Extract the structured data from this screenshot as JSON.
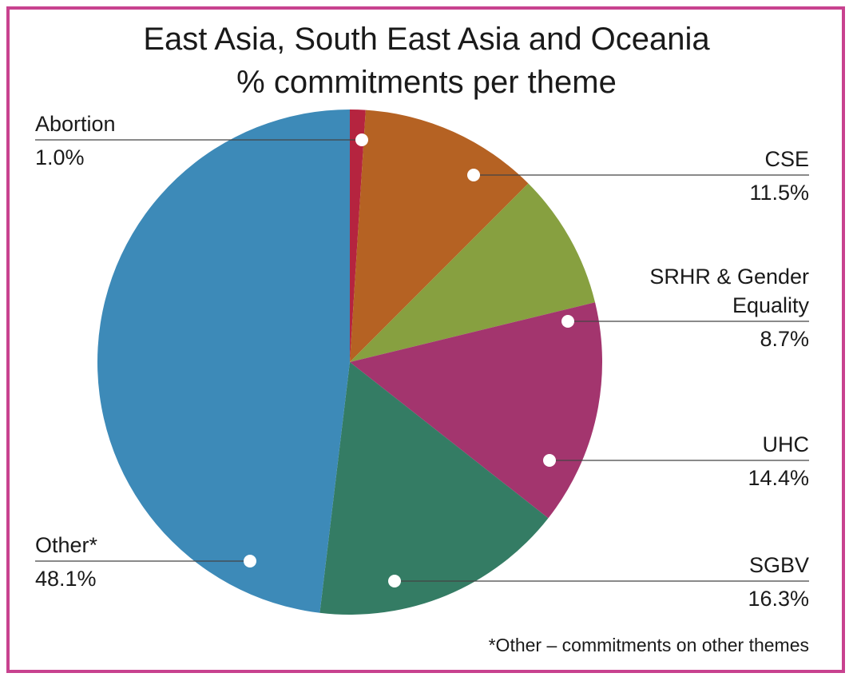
{
  "chart_data": {
    "type": "pie",
    "title": "East Asia, South East Asia and Oceania",
    "subtitle": "% commitments per theme",
    "categories": [
      "Abortion",
      "CSE",
      "SRHR & Gender Equality",
      "UHC",
      "SGBV",
      "Other*"
    ],
    "values": [
      1.0,
      11.5,
      8.7,
      14.4,
      16.3,
      48.1
    ],
    "value_labels": [
      "1.0%",
      "11.5%",
      "8.7%",
      "14.4%",
      "16.3%",
      "48.1%"
    ],
    "colors": [
      "#b5243f",
      "#b56223",
      "#87a040",
      "#a3356e",
      "#347c64",
      "#3d8ab8"
    ],
    "note": "*Other – commitments on other themes"
  }
}
